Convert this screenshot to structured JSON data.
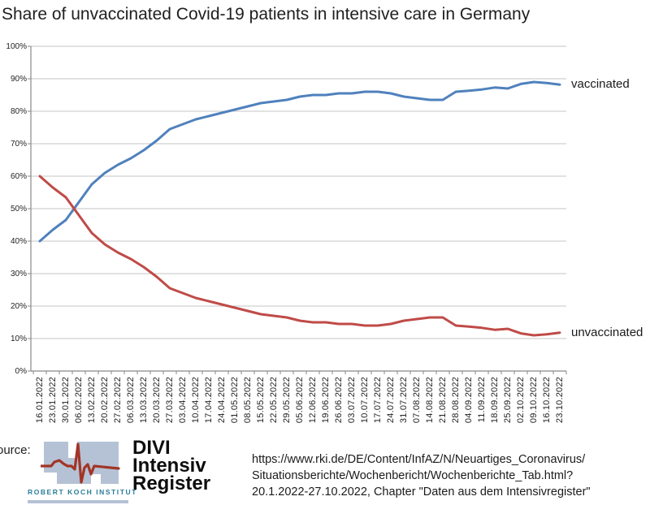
{
  "title": "Share of unvaccinated Covid-19 patients in intensive care in Germany",
  "chart_data": {
    "type": "line",
    "title": "Share of unvaccinated Covid-19 patients in intensive care in Germany",
    "xlabel": "",
    "ylabel": "",
    "ylim": [
      0,
      100
    ],
    "grid": true,
    "legend_position": "line-end-labels",
    "yticks": [
      "0%",
      "10%",
      "20%",
      "30%",
      "40%",
      "50%",
      "60%",
      "70%",
      "80%",
      "90%",
      "100%"
    ],
    "categories": [
      "16.01.2022",
      "23.01.2022",
      "30.01.2022",
      "06.02.2022",
      "13.02.2022",
      "20.02.2022",
      "27.02.2022",
      "06.03.2022",
      "13.03.2022",
      "20.03.2022",
      "27.03.2022",
      "03.04.2022",
      "10.04.2022",
      "17.04.2022",
      "24.04.2022",
      "01.05.2022",
      "08.05.2022",
      "15.05.2022",
      "22.05.2022",
      "29.05.2022",
      "05.06.2022",
      "12.06.2022",
      "19.06.2022",
      "26.06.2022",
      "03.07.2022",
      "10.07.2022",
      "17.07.2022",
      "24.07.2022",
      "31.07.2022",
      "07.08.2022",
      "14.08.2022",
      "21.08.2022",
      "28.08.2022",
      "04.09.2022",
      "11.09.2022",
      "18.09.2022",
      "25.09.2022",
      "02.10.2022",
      "09.10.2022",
      "16.10.2022",
      "23.10.2022"
    ],
    "series": [
      {
        "name": "vaccinated",
        "color": "#4f81bd",
        "values": [
          40,
          43.5,
          46.5,
          52,
          57.5,
          61,
          63.5,
          65.5,
          68,
          71,
          74.5,
          76,
          77.5,
          78.5,
          79.5,
          80.5,
          81.5,
          82.5,
          83,
          83.5,
          84.5,
          85,
          85,
          85.5,
          85.5,
          86,
          86,
          85.5,
          84.5,
          84,
          83.5,
          83.5,
          86,
          86.3,
          86.7,
          87.3,
          87,
          88.4,
          89,
          88.7,
          88.2
        ]
      },
      {
        "name": "unvaccinated",
        "color": "#bf4b47",
        "values": [
          60,
          56.5,
          53.5,
          48,
          42.5,
          39,
          36.5,
          34.5,
          32,
          29,
          25.5,
          24,
          22.5,
          21.5,
          20.5,
          19.5,
          18.5,
          17.5,
          17,
          16.5,
          15.5,
          15,
          15,
          14.5,
          14.5,
          14,
          14,
          14.5,
          15.5,
          16,
          16.5,
          16.5,
          14,
          13.7,
          13.3,
          12.7,
          13,
          11.6,
          11,
          11.3,
          11.8
        ]
      }
    ]
  },
  "footer": {
    "source_label": "ource:",
    "rki_text": "ROBERT KOCH INSTITUT",
    "divi_lines": [
      "DIVI",
      "Intensiv",
      "Register"
    ],
    "reference_lines": [
      "https://www.rki.de/DE/Content/InfAZ/N/Neuartiges_Coronavirus/",
      "Situationsberichte/Wochenbericht/Wochenberichte_Tab.html?",
      "20.1.2022-27.10.2022, Chapter \"Daten aus dem Intensivregister\""
    ]
  },
  "colors": {
    "vaccinated_line": "#4f81bd",
    "unvaccinated_line": "#bf4b47",
    "gridline": "#c5c5c5",
    "axis": "#898989",
    "text": "#1f1f1f",
    "rki_teal": "#2a7c99",
    "rki_blue_gray": "#b5c2d5",
    "rki_red": "#a23526"
  }
}
